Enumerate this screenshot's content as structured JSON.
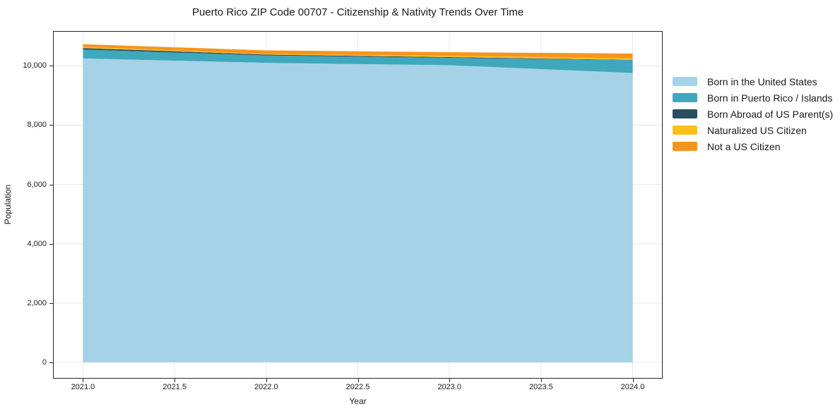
{
  "chart_data": {
    "type": "area",
    "stacked": true,
    "title": "Puerto Rico ZIP Code 00707 - Citizenship & Nativity Trends Over Time",
    "xlabel": "Year",
    "ylabel": "Population",
    "x": [
      2021,
      2022,
      2023,
      2024
    ],
    "series": [
      {
        "name": "Born in the United States",
        "color": "#a5d2e7",
        "values": [
          10250,
          10100,
          10020,
          9760
        ]
      },
      {
        "name": "Born in Puerto Rico / Islands",
        "color": "#3fa8bd",
        "values": [
          300,
          250,
          250,
          430
        ]
      },
      {
        "name": "Born Abroad of US Parent(s)",
        "color": "#2a4d5f",
        "values": [
          50,
          30,
          25,
          10
        ]
      },
      {
        "name": "Naturalized US Citizen",
        "color": "#fcc01e",
        "values": [
          40,
          20,
          45,
          55
        ]
      },
      {
        "name": "Not a US Citizen",
        "color": "#f7941d",
        "values": [
          90,
          120,
          120,
          160
        ]
      }
    ],
    "xlim": [
      2020.84,
      2024.16
    ],
    "ylim": [
      -525,
      11150
    ],
    "xticks": {
      "values": [
        2021,
        2021.5,
        2022,
        2022.5,
        2023,
        2023.5,
        2024
      ],
      "labels": [
        "2021.0",
        "2021.5",
        "2022.0",
        "2022.5",
        "2023.0",
        "2023.5",
        "2024.0"
      ]
    },
    "yticks": {
      "values": [
        0,
        2000,
        4000,
        6000,
        8000,
        10000
      ],
      "labels": [
        "0",
        "2,000",
        "4,000",
        "6,000",
        "8,000",
        "10,000"
      ]
    },
    "grid": true,
    "legend_position": "right"
  },
  "colors": {
    "spine": "#262626",
    "grid": "#e7e7e7",
    "background": "#ffffff",
    "text": "#1a1a1a"
  }
}
